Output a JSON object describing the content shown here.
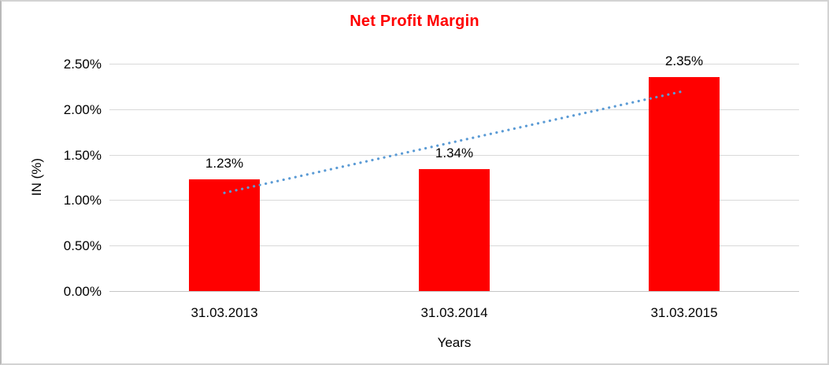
{
  "window": {
    "background_color": "#ffffff",
    "frame_border_color": "#d3d3d3"
  },
  "chart_data": {
    "type": "bar",
    "title": "Net Profit Margin",
    "title_color": "#ff0000",
    "categories": [
      "31.03.2013",
      "31.03.2014",
      "31.03.2015"
    ],
    "values": [
      1.23,
      1.34,
      2.35
    ],
    "data_labels": [
      "1.23%",
      "1.34%",
      "2.35%"
    ],
    "bar_color": "#ff0000",
    "xlabel": "Years",
    "ylabel": "IN (%)",
    "ylim": [
      0,
      2.5
    ],
    "ytick_values": [
      0,
      0.5,
      1,
      1.5,
      2,
      2.5
    ],
    "ytick_labels": [
      "0.00%",
      "0.50%",
      "1.00%",
      "1.50%",
      "2.00%",
      "2.50%"
    ],
    "grid": true,
    "gridline_color": "#d9d9d9",
    "legend": "none",
    "trendline": {
      "type": "linear",
      "style": "dotted",
      "color": "#5b9bd5",
      "start_value": 1.08,
      "end_value": 2.2
    }
  }
}
